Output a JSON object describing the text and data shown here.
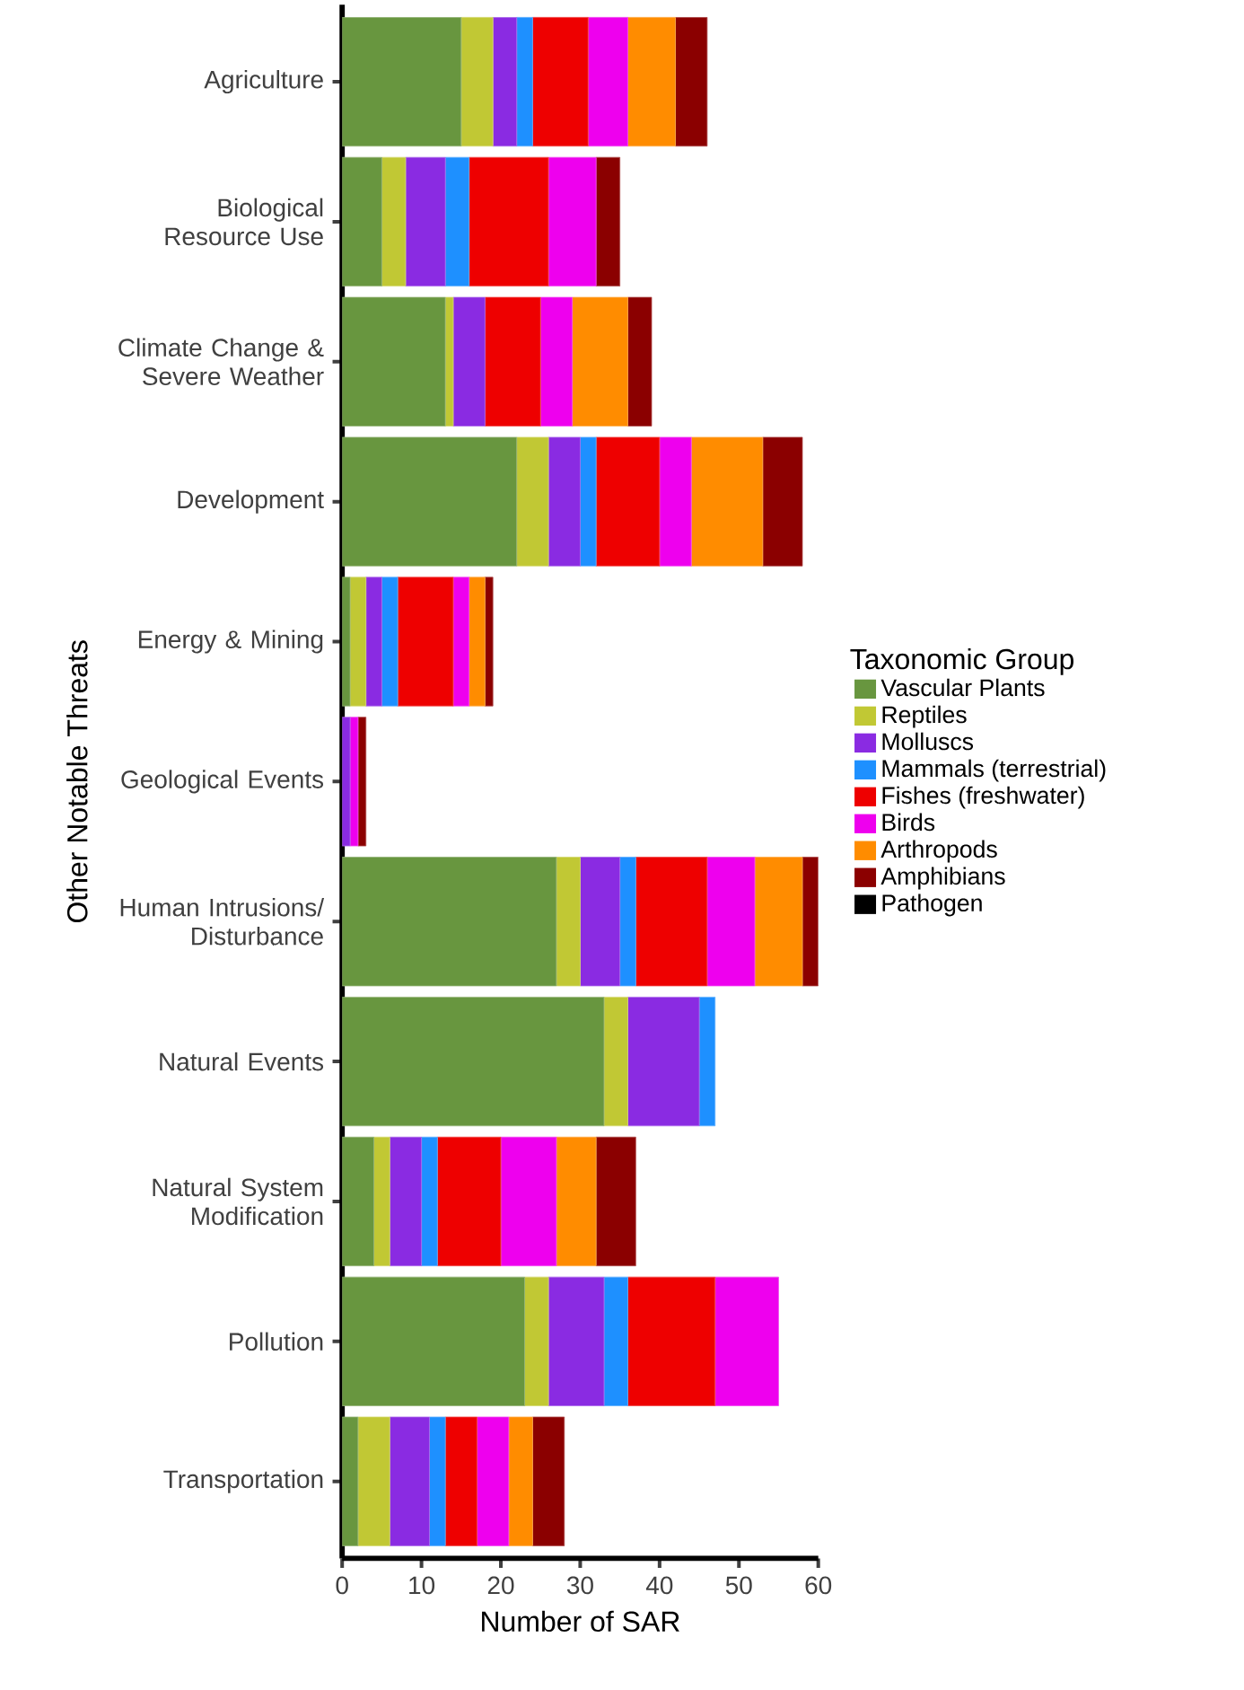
{
  "chart_data": {
    "type": "bar",
    "orientation": "horizontal",
    "stacked": true,
    "xlabel": "Number of SAR",
    "ylabel": "Other Notable Threats",
    "legend_title": "Taxonomic Group",
    "categories": [
      "Agriculture",
      "Biological Resource Use",
      "Climate Change & Severe Weather",
      "Development",
      "Energy & Mining",
      "Geological Events",
      "Human Intrusions/ Disturbance",
      "Natural Events",
      "Natural System Modification",
      "Pollution",
      "Transportation"
    ],
    "xlim": [
      0,
      60
    ],
    "xticks": [
      0,
      10,
      20,
      30,
      40,
      50,
      60
    ],
    "grid": false,
    "legend": "right",
    "series": [
      {
        "name": "Vascular Plants",
        "color": "#68963f",
        "values": [
          15,
          5,
          13,
          22,
          1,
          0,
          27,
          33,
          4,
          23,
          2
        ]
      },
      {
        "name": "Reptiles",
        "color": "#c1c834",
        "values": [
          4,
          3,
          1,
          4,
          2,
          0,
          3,
          3,
          2,
          3,
          4
        ]
      },
      {
        "name": "Molluscs",
        "color": "#8a2be2",
        "values": [
          3,
          5,
          4,
          4,
          2,
          1,
          5,
          9,
          4,
          7,
          5
        ]
      },
      {
        "name": "Mammals (terrestrial)",
        "color": "#1e90ff",
        "values": [
          2,
          3,
          0,
          2,
          2,
          0,
          2,
          2,
          2,
          3,
          2
        ]
      },
      {
        "name": "Fishes (freshwater)",
        "color": "#ee0000",
        "values": [
          7,
          10,
          7,
          8,
          7,
          0,
          9,
          0,
          8,
          11,
          4
        ]
      },
      {
        "name": "Birds",
        "color": "#ee00ee",
        "values": [
          5,
          6,
          4,
          4,
          2,
          1,
          6,
          0,
          7,
          8,
          4
        ]
      },
      {
        "name": "Arthropods",
        "color": "#ff8c00",
        "values": [
          6,
          0,
          7,
          9,
          2,
          0,
          6,
          0,
          5,
          0,
          3
        ]
      },
      {
        "name": "Amphibians",
        "color": "#8b0000",
        "values": [
          4,
          3,
          3,
          5,
          1,
          1,
          2,
          0,
          5,
          0,
          4
        ]
      },
      {
        "name": "Pathogen",
        "color": "#000000",
        "values": [
          0,
          0,
          0,
          0,
          0,
          0,
          0,
          0,
          0,
          0,
          0
        ]
      }
    ]
  }
}
